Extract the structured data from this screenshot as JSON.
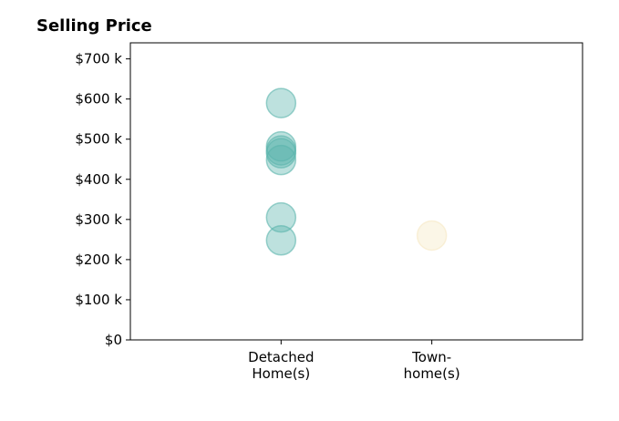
{
  "chart_data": {
    "type": "scatter",
    "title": "Selling Price",
    "xlabel": "",
    "ylabel": "",
    "categories": [
      [
        "Detached",
        "Home(s)"
      ],
      [
        "Town-",
        "home(s)"
      ]
    ],
    "yticks": [
      0,
      100000,
      200000,
      300000,
      400000,
      500000,
      600000,
      700000
    ],
    "ytick_labels": [
      "$0",
      "$100 k",
      "$200 k",
      "$300 k",
      "$400 k",
      "$500 k",
      "$600 k",
      "$700 k"
    ],
    "ylim": [
      0,
      740000
    ],
    "xlim": [
      -1,
      2
    ],
    "grid": false,
    "series": [
      {
        "category_index": 0,
        "color": "#5ab4ac",
        "values": [
          590000,
          482000,
          472000,
          465000,
          448000,
          305000,
          248000
        ]
      },
      {
        "category_index": 1,
        "color": "#f6e8c3",
        "values": [
          260000
        ]
      }
    ]
  }
}
